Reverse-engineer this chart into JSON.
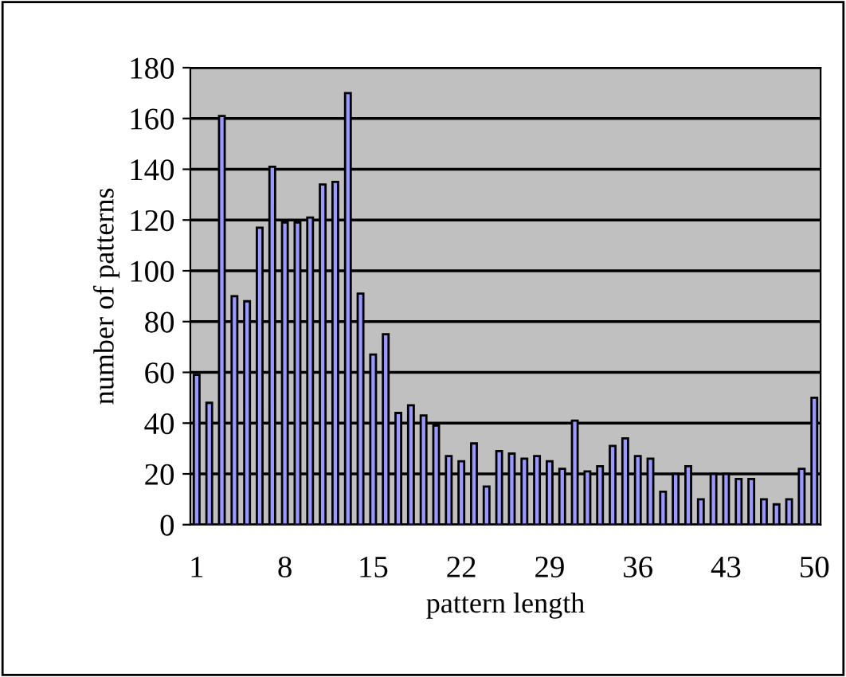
{
  "chart_data": {
    "type": "bar",
    "xlabel": "pattern length",
    "ylabel": "number of patterns",
    "categories": [
      "1",
      null,
      null,
      null,
      null,
      null,
      null,
      "8",
      null,
      null,
      null,
      null,
      null,
      null,
      "15",
      null,
      null,
      null,
      null,
      null,
      null,
      "22",
      null,
      null,
      null,
      null,
      null,
      null,
      "29",
      null,
      null,
      null,
      null,
      null,
      null,
      "36",
      null,
      null,
      null,
      null,
      null,
      null,
      "43",
      null,
      null,
      null,
      null,
      null,
      null,
      "50"
    ],
    "values": [
      59,
      48,
      161,
      90,
      88,
      117,
      141,
      119,
      119,
      121,
      134,
      135,
      170,
      91,
      67,
      75,
      44,
      47,
      43,
      39,
      27,
      25,
      32,
      15,
      29,
      28,
      26,
      27,
      25,
      22,
      41,
      21,
      23,
      31,
      34,
      27,
      26,
      13,
      20,
      23,
      10,
      20,
      20,
      18,
      18,
      10,
      8,
      10,
      22,
      50
    ],
    "color": "#9999ff",
    "ylim": [
      0,
      180
    ],
    "yticks": [
      0,
      20,
      40,
      60,
      80,
      100,
      120,
      140,
      160,
      180
    ],
    "grid": "y",
    "legend": false
  }
}
